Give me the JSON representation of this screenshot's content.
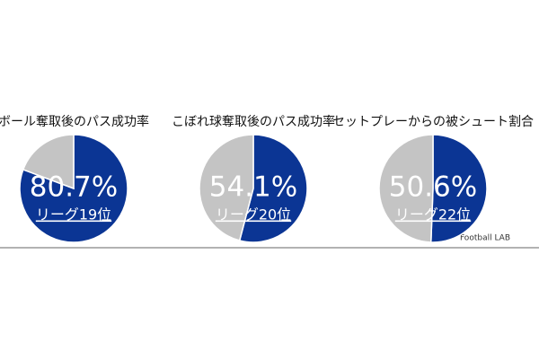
{
  "chart_data": [
    {
      "type": "pie",
      "title": "ボール奪取後のパス成功率",
      "categories": [
        null,
        null
      ],
      "values": [
        80.7,
        19.3
      ],
      "value_labels": [
        "80.7%",
        null
      ],
      "colors": [
        "#0b3594",
        "#c4c4c4"
      ],
      "annotation": "リーグ19位"
    },
    {
      "type": "pie",
      "title": "こぼれ球奪取後のパス成功率",
      "categories": [
        null,
        null
      ],
      "values": [
        54.1,
        45.9
      ],
      "value_labels": [
        "54.1%",
        null
      ],
      "colors": [
        "#0b3594",
        "#c4c4c4"
      ],
      "annotation": "リーグ20位"
    },
    {
      "type": "pie",
      "title": "セットプレーからの被シュート割合",
      "categories": [
        null,
        null
      ],
      "values": [
        50.6,
        49.4
      ],
      "value_labels": [
        "50.6%",
        null
      ],
      "colors": [
        "#0b3594",
        "#c4c4c4"
      ],
      "annotation": "リーグ22位"
    }
  ],
  "source": "Football LAB"
}
